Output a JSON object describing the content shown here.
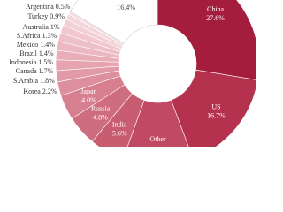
{
  "chart_data": {
    "type": "donut",
    "categories": [
      "China",
      "US",
      "Other",
      "India",
      "Russia",
      "Japan",
      "Korea",
      "S.Arabia",
      "Canada",
      "Indonesia",
      "Brazil",
      "Mexico",
      "S.Africa",
      "Australia",
      "Turkey",
      "Argentina",
      null
    ],
    "values": [
      27.6,
      16.7,
      11.2,
      5.6,
      4.8,
      4.0,
      2.2,
      1.8,
      1.7,
      1.5,
      1.4,
      1.4,
      1.3,
      1,
      0.9,
      0.5,
      16.4
    ],
    "value_labels": [
      "27.6%",
      "16.7%",
      null,
      "5.6%",
      "4.8%",
      "4.0%",
      "2.2%",
      "1.8%",
      "1.7%",
      "1.5%",
      "1.4%",
      "1.4%",
      "1.3%",
      "1%",
      "0.9%",
      "0.5%",
      "16.4%"
    ],
    "colors": [
      "#a51d3d",
      "#b5324f",
      "#c04a63",
      "#c85d72",
      "#cf6d80",
      "#d77f8f",
      "#dd8f9d",
      "#e19aa6",
      "#e5a4af",
      "#e8aeb8",
      "#ebb7c0",
      "#edbfc7",
      "#f0c8ce",
      "#f2d0d5",
      "#f4d7dc",
      "#f6dfe3",
      "#ffffff"
    ]
  }
}
